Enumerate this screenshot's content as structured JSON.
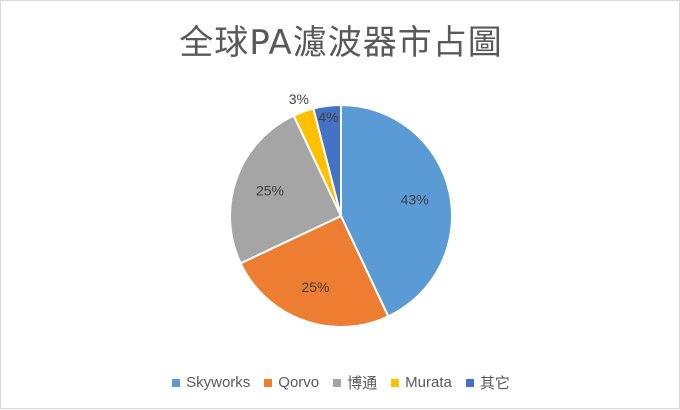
{
  "chart_data": {
    "type": "pie",
    "title": "全球PA濾波器市占圖",
    "categories": [
      "Skyworks",
      "Qorvo",
      "博通",
      "Murata",
      "其它"
    ],
    "values": [
      43,
      25,
      25,
      3,
      4
    ],
    "labels": [
      "43%",
      "25%",
      "25%",
      "3%",
      "4%"
    ],
    "colors": [
      "#5b9bd5",
      "#ed7d31",
      "#a5a5a5",
      "#ffc000",
      "#4472c4"
    ],
    "legend": "bottom"
  }
}
